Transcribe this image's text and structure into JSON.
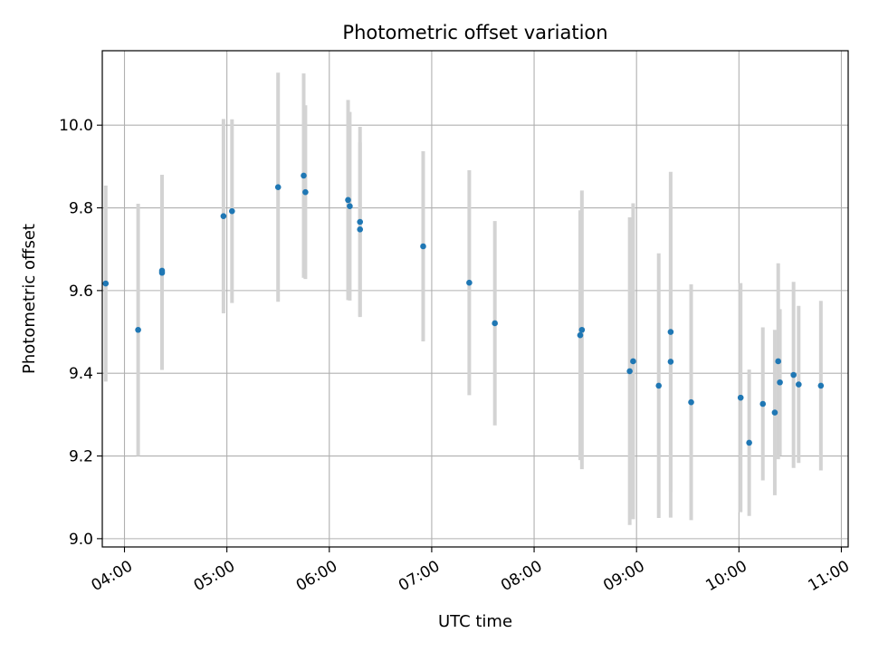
{
  "chart_data": {
    "type": "scatter",
    "title": "Photometric offset variation",
    "xlabel": "UTC time",
    "ylabel": "Photometric offset",
    "xlim": [
      "03:47",
      "11:04"
    ],
    "ylim": [
      8.98,
      10.18
    ],
    "x_ticks": [
      "04:00",
      "05:00",
      "06:00",
      "07:00",
      "08:00",
      "09:00",
      "10:00",
      "11:00"
    ],
    "y_ticks": [
      "9.0",
      "9.2",
      "9.4",
      "9.6",
      "9.8",
      "10.0"
    ],
    "grid": true,
    "series": [
      {
        "marker_color": "#1f77b4",
        "errorbar_color": "#d3d3d3",
        "points": [
          {
            "x": "03:49",
            "y": 9.617,
            "err": 0.237
          },
          {
            "x": "04:08",
            "y": 9.505,
            "err": 0.305
          },
          {
            "x": "04:22",
            "y": 9.643,
            "err": 0.235
          },
          {
            "x": "04:22",
            "y": 9.648,
            "err": 0.232
          },
          {
            "x": "04:58",
            "y": 9.78,
            "err": 0.235
          },
          {
            "x": "05:03",
            "y": 9.792,
            "err": 0.222
          },
          {
            "x": "05:30",
            "y": 9.85,
            "err": 0.277
          },
          {
            "x": "05:45",
            "y": 9.878,
            "err": 0.247
          },
          {
            "x": "05:46",
            "y": 9.838,
            "err": 0.21
          },
          {
            "x": "06:11",
            "y": 9.819,
            "err": 0.242
          },
          {
            "x": "06:12",
            "y": 9.804,
            "err": 0.228
          },
          {
            "x": "06:18",
            "y": 9.748,
            "err": 0.21
          },
          {
            "x": "06:18",
            "y": 9.766,
            "err": 0.23
          },
          {
            "x": "06:55",
            "y": 9.707,
            "err": 0.23
          },
          {
            "x": "07:22",
            "y": 9.619,
            "err": 0.272
          },
          {
            "x": "07:37",
            "y": 9.521,
            "err": 0.247
          },
          {
            "x": "08:27",
            "y": 9.492,
            "err": 0.302
          },
          {
            "x": "08:28",
            "y": 9.505,
            "err": 0.337
          },
          {
            "x": "08:56",
            "y": 9.405,
            "err": 0.372
          },
          {
            "x": "08:58",
            "y": 9.429,
            "err": 0.382
          },
          {
            "x": "09:13",
            "y": 9.37,
            "err": 0.32
          },
          {
            "x": "09:20",
            "y": 9.428,
            "err": 0.377
          },
          {
            "x": "09:20",
            "y": 9.5,
            "err": 0.387
          },
          {
            "x": "09:32",
            "y": 9.33,
            "err": 0.285
          },
          {
            "x": "10:01",
            "y": 9.341,
            "err": 0.277
          },
          {
            "x": "10:06",
            "y": 9.232,
            "err": 0.177
          },
          {
            "x": "10:14",
            "y": 9.326,
            "err": 0.185
          },
          {
            "x": "10:21",
            "y": 9.305,
            "err": 0.2
          },
          {
            "x": "10:23",
            "y": 9.429,
            "err": 0.237
          },
          {
            "x": "10:24",
            "y": 9.378,
            "err": 0.177
          },
          {
            "x": "10:32",
            "y": 9.396,
            "err": 0.225
          },
          {
            "x": "10:35",
            "y": 9.373,
            "err": 0.19
          },
          {
            "x": "10:48",
            "y": 9.37,
            "err": 0.205
          }
        ]
      }
    ]
  }
}
